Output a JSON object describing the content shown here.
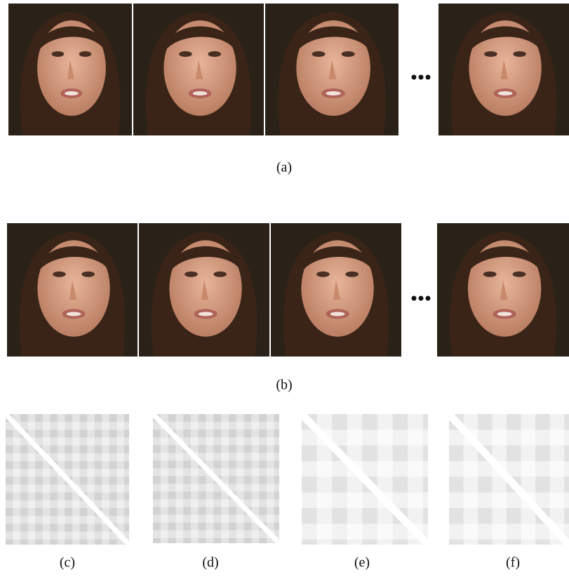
{
  "figure": {
    "labels": [
      "(a)",
      "(b)",
      "(c)",
      "(d)",
      "(e)",
      "(f)"
    ]
  }
}
